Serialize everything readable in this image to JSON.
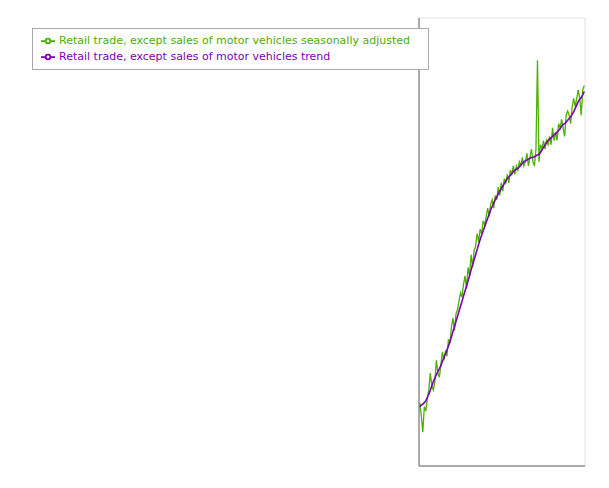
{
  "chart_data": {
    "type": "line",
    "x": [
      0,
      1,
      2,
      3,
      4,
      5,
      6,
      7,
      8,
      9,
      10,
      11,
      12,
      13,
      14,
      15,
      16,
      17,
      18,
      19,
      20,
      21,
      22,
      23,
      24,
      25,
      26,
      27,
      28,
      29,
      30,
      31,
      32,
      33,
      34,
      35,
      36,
      37,
      38,
      39,
      40,
      41,
      42,
      43,
      44,
      45,
      46,
      47,
      48,
      49,
      50,
      51,
      52,
      53,
      54,
      55,
      56,
      57,
      58,
      59,
      60,
      61,
      62,
      63,
      64,
      65,
      66,
      67,
      68,
      69,
      70,
      71,
      72,
      73,
      74,
      75,
      76,
      77,
      78,
      79,
      80,
      81,
      82,
      83,
      84,
      85,
      86,
      87,
      88,
      89,
      90,
      91,
      92,
      93,
      94,
      95,
      96,
      97,
      98,
      99,
      100,
      101,
      102,
      103,
      104,
      105,
      106,
      107,
      108,
      109
    ],
    "series": [
      {
        "name": "Retail trade, except sales of motor vehicles seasonally adjusted",
        "color": "#4daf00",
        "values": [
          79.5,
          78.0,
          76.0,
          79.0,
          78.5,
          80.0,
          81.0,
          83.0,
          81.5,
          81.0,
          82.0,
          84.5,
          83.0,
          82.5,
          84.0,
          85.5,
          84.5,
          85.5,
          85.0,
          87.0,
          86.5,
          88.5,
          89.5,
          88.0,
          90.0,
          90.5,
          91.5,
          92.5,
          92.0,
          93.5,
          94.5,
          93.0,
          95.5,
          94.5,
          97.0,
          95.5,
          97.5,
          98.0,
          99.5,
          98.5,
          100.0,
          99.5,
          101.0,
          100.5,
          101.5,
          102.5,
          101.5,
          103.0,
          103.5,
          102.5,
          104.0,
          103.5,
          105.0,
          104.0,
          105.5,
          104.5,
          106.0,
          105.5,
          106.5,
          105.5,
          107.0,
          106.5,
          107.5,
          106.5,
          107.5,
          107.0,
          108.0,
          107.5,
          108.5,
          107.5,
          108.0,
          109.0,
          107.5,
          108.5,
          109.5,
          108.0,
          107.5,
          109.5,
          120.0,
          108.0,
          110.0,
          109.5,
          110.5,
          109.5,
          110.5,
          110.0,
          111.0,
          110.0,
          112.0,
          110.5,
          111.5,
          110.5,
          112.5,
          112.0,
          113.0,
          112.0,
          111.0,
          113.5,
          114.0,
          113.5,
          112.5,
          114.5,
          115.5,
          114.5,
          115.5,
          116.5,
          115.5,
          113.5,
          116.5,
          117.0
        ]
      },
      {
        "name": "Retail trade, except sales of motor vehicles trend",
        "color": "#7b00b4",
        "values": [
          79.0,
          79.2,
          79.3,
          79.5,
          79.7,
          80.1,
          80.5,
          81.0,
          81.5,
          82.0,
          82.4,
          82.8,
          83.2,
          83.5,
          83.9,
          84.4,
          84.8,
          85.3,
          85.7,
          86.2,
          86.7,
          87.3,
          87.9,
          88.5,
          89.1,
          89.7,
          90.3,
          90.9,
          91.5,
          92.1,
          92.7,
          93.3,
          93.9,
          94.5,
          95.2,
          95.8,
          96.4,
          97.0,
          97.6,
          98.2,
          98.8,
          99.3,
          99.8,
          100.3,
          100.8,
          101.3,
          101.8,
          102.3,
          102.7,
          103.1,
          103.5,
          103.8,
          104.2,
          104.5,
          104.8,
          105.1,
          105.4,
          105.7,
          106.0,
          106.2,
          106.4,
          106.6,
          106.8,
          107.0,
          107.1,
          107.2,
          107.4,
          107.6,
          107.8,
          108.0,
          108.1,
          108.2,
          108.3,
          108.4,
          108.5,
          108.5,
          108.6,
          108.7,
          108.8,
          108.9,
          109.1,
          109.4,
          109.7,
          110.0,
          110.3,
          110.5,
          110.7,
          110.8,
          111.0,
          111.2,
          111.3,
          111.5,
          111.7,
          111.9,
          112.2,
          112.4,
          112.5,
          112.7,
          112.9,
          113.1,
          113.3,
          113.6,
          113.9,
          114.3,
          114.7,
          115.1,
          115.4,
          115.6,
          115.9,
          116.3
        ]
      }
    ],
    "xlim": [
      -0.5,
      109.5
    ],
    "xticks": [
      0,
      18.166666666666668,
      36.333333333333336,
      54.5,
      72.66666666666667,
      90.83333333333333,
      109
    ],
    "ylim": [
      72,
      125
    ],
    "yticks": [
      72,
      82.6,
      93.2,
      103.8,
      114.4,
      125
    ],
    "grid": true,
    "legend": "upper left",
    "tick_labels": false
  }
}
